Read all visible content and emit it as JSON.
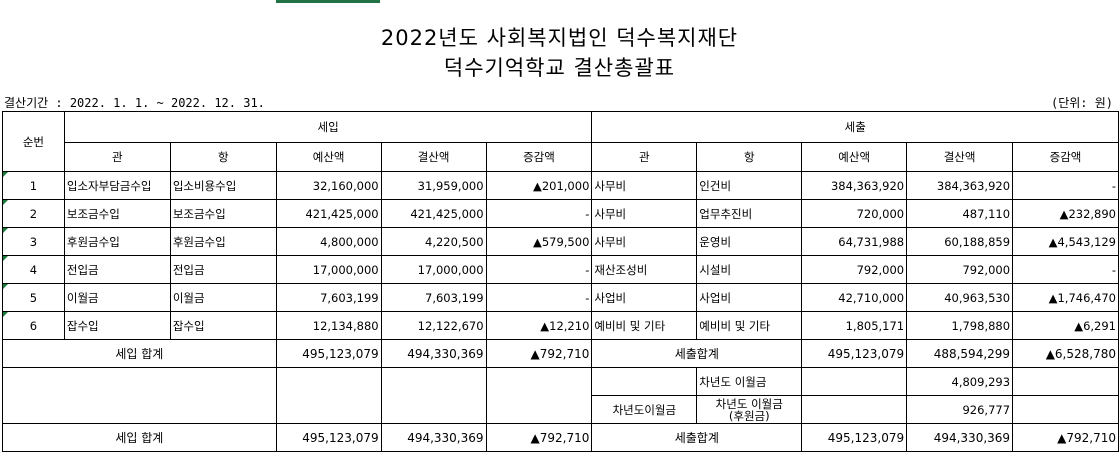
{
  "title_line1": "2022년도 사회복지법인 덕수복지재단",
  "title_line2": "덕수기억학교 결산총괄표",
  "period": "결산기간 : 2022. 1. 1. ~ 2022. 12. 31.",
  "unit": "(단위: 원)",
  "headers": {
    "no": "순번",
    "income": "세입",
    "expense": "세출",
    "gwan": "관",
    "hang": "항",
    "budget": "예산액",
    "settled": "결산액",
    "diff": "증감액"
  },
  "rows": [
    {
      "no": "1",
      "in_gwan": "입소자부담금수입",
      "in_hang": "입소비용수입",
      "in_budget": "32,160,000",
      "in_settled": "31,959,000",
      "in_diff": "▲201,000",
      "ex_gwan": "사무비",
      "ex_hang": "인건비",
      "ex_budget": "384,363,920",
      "ex_settled": "384,363,920",
      "ex_diff": "-"
    },
    {
      "no": "2",
      "in_gwan": "보조금수입",
      "in_hang": "보조금수입",
      "in_budget": "421,425,000",
      "in_settled": "421,425,000",
      "in_diff": "-",
      "ex_gwan": "사무비",
      "ex_hang": "업무추진비",
      "ex_budget": "720,000",
      "ex_settled": "487,110",
      "ex_diff": "▲232,890"
    },
    {
      "no": "3",
      "in_gwan": "후원금수입",
      "in_hang": "후원금수입",
      "in_budget": "4,800,000",
      "in_settled": "4,220,500",
      "in_diff": "▲579,500",
      "ex_gwan": "사무비",
      "ex_hang": "운영비",
      "ex_budget": "64,731,988",
      "ex_settled": "60,188,859",
      "ex_diff": "▲4,543,129"
    },
    {
      "no": "4",
      "in_gwan": "전입금",
      "in_hang": "전입금",
      "in_budget": "17,000,000",
      "in_settled": "17,000,000",
      "in_diff": "-",
      "ex_gwan": "재산조성비",
      "ex_hang": "시설비",
      "ex_budget": "792,000",
      "ex_settled": "792,000",
      "ex_diff": "-"
    },
    {
      "no": "5",
      "in_gwan": "이월금",
      "in_hang": "이월금",
      "in_budget": "7,603,199",
      "in_settled": "7,603,199",
      "in_diff": "-",
      "ex_gwan": "사업비",
      "ex_hang": "사업비",
      "ex_budget": "42,710,000",
      "ex_settled": "40,963,530",
      "ex_diff": "▲1,746,470"
    },
    {
      "no": "6",
      "in_gwan": "잡수입",
      "in_hang": "잡수입",
      "in_budget": "12,134,880",
      "in_settled": "12,122,670",
      "in_diff": "▲12,210",
      "ex_gwan": "예비비 및 기타",
      "ex_hang": "예비비 및 기타",
      "ex_budget": "1,805,171",
      "ex_settled": "1,798,880",
      "ex_diff": "▲6,291"
    }
  ],
  "subtotal": {
    "in_label": "세입 합계",
    "in_budget": "495,123,079",
    "in_settled": "494,330,369",
    "in_diff": "▲792,710",
    "ex_label": "세출합계",
    "ex_budget": "495,123,079",
    "ex_settled": "488,594,299",
    "ex_diff": "▲6,528,780"
  },
  "carry": {
    "row1_hang": "차년도 이월금",
    "row1_settled": "4,809,293",
    "gwan": "차년도이월금",
    "row2_hang_line1": "차년도 이월금",
    "row2_hang_line2": "(후원금)",
    "row2_settled": "926,777"
  },
  "total": {
    "in_label": "세입 합계",
    "in_budget": "495,123,079",
    "in_settled": "494,330,369",
    "in_diff": "▲792,710",
    "ex_label": "세출합계",
    "ex_budget": "495,123,079",
    "ex_settled": "494,330,369",
    "ex_diff": "▲792,710"
  },
  "colors": {
    "accent": "#217346",
    "marker": "#1e7a3a"
  }
}
